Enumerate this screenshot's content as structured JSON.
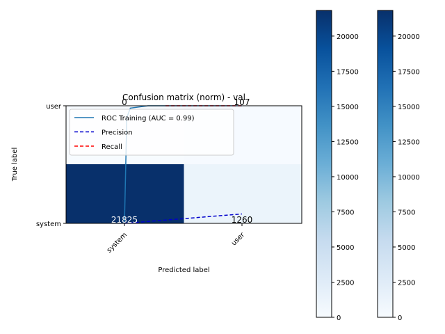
{
  "chart_data": {
    "type": "heatmap",
    "title": "Confusion matrix (norm) - val",
    "xlabel": "Predicted label",
    "ylabel": "True label",
    "x_categories": [
      "system",
      "user"
    ],
    "y_categories": [
      "system",
      "user"
    ],
    "y_order_top_to_bottom": [
      "user",
      "system"
    ],
    "matrix": [
      [
        21825,
        1260
      ],
      [
        0,
        107
      ]
    ],
    "cell_labels": [
      [
        "21825",
        "1260"
      ],
      [
        "0",
        "107"
      ]
    ],
    "colormap": "Blues",
    "value_range": [
      0,
      21825
    ],
    "colorbars": [
      {
        "ticks": [
          0,
          2500,
          5000,
          7500,
          10000,
          12500,
          15000,
          17500,
          20000
        ],
        "range": [
          0,
          21825
        ]
      },
      {
        "ticks": [
          0,
          2500,
          5000,
          7500,
          10000,
          12500,
          15000,
          17500,
          20000
        ],
        "range": [
          0,
          21825
        ]
      }
    ],
    "legend": {
      "placement": "upper left",
      "entries": [
        {
          "label": "ROC Training (AUC = 0.99)",
          "color": "#1f77b4",
          "style": "solid"
        },
        {
          "label": "Precision",
          "color": "#0000cc",
          "style": "dashed"
        },
        {
          "label": "Recall",
          "color": "#ff0000",
          "style": "dashed"
        }
      ]
    },
    "overlay_lines": {
      "roc": {
        "points": [
          [
            0,
            0
          ],
          [
            0.02,
            0.9
          ],
          [
            0.05,
            0.98
          ],
          [
            0.2,
            1.0
          ],
          [
            1.0,
            1.0
          ]
        ],
        "color": "#1f77b4"
      },
      "precision": {
        "points": [
          [
            0,
            0
          ],
          [
            1,
            0.08
          ]
        ],
        "color": "#0000cc"
      },
      "recall": {
        "points": [
          [
            0.35,
            1.0
          ],
          [
            1,
            1.0
          ]
        ],
        "color": "#ff0000"
      }
    }
  }
}
